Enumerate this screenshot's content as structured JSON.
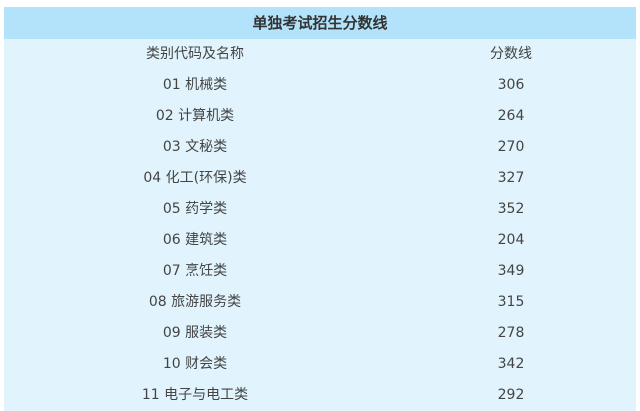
{
  "title": "单独考试招生分数线",
  "columns": [
    "类别代码及名称",
    "分数线"
  ],
  "rows": [
    [
      "01 机械类",
      "306"
    ],
    [
      "02 计算机类",
      "264"
    ],
    [
      "03 文秘类",
      "270"
    ],
    [
      "04 化工(环保)类",
      "327"
    ],
    [
      "05 药学类",
      "352"
    ],
    [
      "06 建筑类",
      "204"
    ],
    [
      "07 烹饪类",
      "349"
    ],
    [
      "08 旅游服务类",
      "315"
    ],
    [
      "09 服装类",
      "278"
    ],
    [
      "10 财会类",
      "342"
    ],
    [
      "11 电子与电工类",
      "292"
    ]
  ],
  "colors": {
    "header_bg": "#b3e3fa",
    "body_bg": "#e1f4fd"
  }
}
